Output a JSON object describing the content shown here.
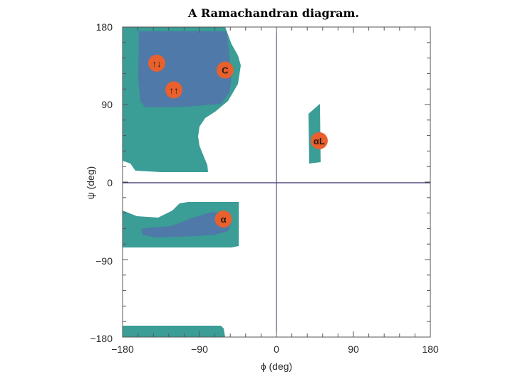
{
  "title": "A Ramachandran diagram.",
  "xlabel": "ϕ (deg)",
  "ylabel": "ψ (deg)",
  "x_ticks": [
    "−180",
    "−90",
    "0",
    "90",
    "180"
  ],
  "y_ticks": [
    "180",
    "90",
    "0",
    "−90",
    "−180"
  ],
  "colors": {
    "allowed_region": "#3a9d96",
    "favored_region": "#4f79a8",
    "badge": "#e8602e",
    "frame": "#555555",
    "axis_zero": "#3a2a6a"
  },
  "chart_data": {
    "type": "scatter",
    "xlim": [
      -180,
      180
    ],
    "ylim": [
      -180,
      180
    ],
    "x_ticks": [
      -180,
      -90,
      0,
      90,
      180
    ],
    "y_ticks": [
      -180,
      -90,
      0,
      90,
      180
    ],
    "labeled_points": [
      {
        "label": "↑↓",
        "x": -140,
        "y": 138
      },
      {
        "label": "C",
        "x": -60,
        "y": 130
      },
      {
        "label": "↑↑",
        "x": -120,
        "y": 107
      },
      {
        "label": "αL",
        "x": 50,
        "y": 48
      },
      {
        "label": "α",
        "x": -62,
        "y": -43
      }
    ]
  }
}
